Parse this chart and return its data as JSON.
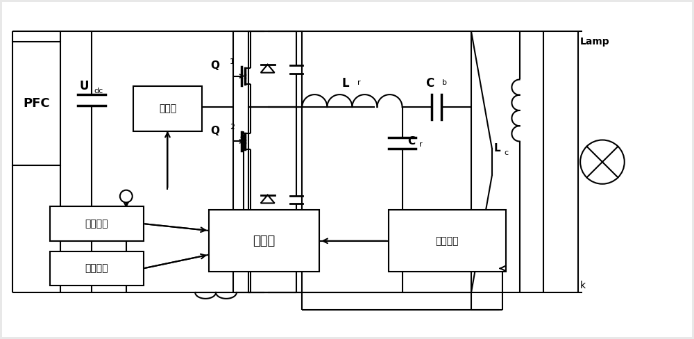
{
  "bg_color": "#e8e8e8",
  "line_color": "#000000",
  "box_color": "#ffffff",
  "figsize": [
    10.0,
    4.88
  ],
  "dpi": 100,
  "labels": {
    "PFC": "PFC",
    "Udc": "U",
    "dc_sub": "dc",
    "driver": "驱动器",
    "Q1": "Q",
    "Q1_sub": "1",
    "Q2": "Q",
    "Q2_sub": "2",
    "Lr": "L",
    "Lr_sub": "r",
    "Cb": "C",
    "Cb_sub": "b",
    "Cr": "C",
    "Cr_sub": "r",
    "Lc": "L",
    "Lc_sub": "c",
    "k": "k",
    "Lamp": "Lamp",
    "current_sample": "电流采样",
    "dimming_signal": "调光信号",
    "mcu": "单片机",
    "voltage_sample": "电压采样"
  }
}
